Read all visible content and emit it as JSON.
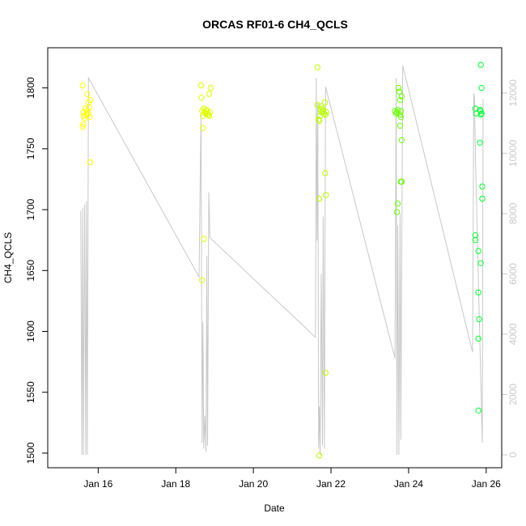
{
  "chart_data": {
    "type": "scatter",
    "title": "ORCAS RF01-6 CH4_QCLS",
    "xlabel": "Date",
    "ylabel": "CH4_QCLS",
    "x_ticks": [
      "Jan 16",
      "Jan 18",
      "Jan 20",
      "Jan 22",
      "Jan 24",
      "Jan 26"
    ],
    "x_tick_days": [
      16,
      18,
      20,
      22,
      24,
      26
    ],
    "xlim_days": [
      14.7,
      26.4
    ],
    "ylim": [
      1488,
      1833
    ],
    "y_ticks": [
      1500,
      1550,
      1600,
      1650,
      1700,
      1750,
      1800
    ],
    "y2_ticks": [
      0,
      2000,
      4000,
      6000,
      8000,
      10000,
      12000
    ],
    "y2lim": [
      -430,
      13500
    ],
    "y2_color": "#c8c8c8",
    "grid": false,
    "legend": "none",
    "series": [
      {
        "color": "#ffff00",
        "points": [
          [
            15.6,
            1802
          ],
          [
            15.62,
            1780
          ],
          [
            15.63,
            1777
          ],
          [
            15.65,
            1775
          ],
          [
            15.67,
            1783
          ],
          [
            15.7,
            1778
          ],
          [
            15.72,
            1781
          ],
          [
            15.74,
            1779
          ],
          [
            15.75,
            1788
          ],
          [
            15.77,
            1784
          ],
          [
            15.78,
            1776
          ],
          [
            15.6,
            1768
          ],
          [
            15.62,
            1770
          ],
          [
            15.72,
            1795
          ],
          [
            15.8,
            1790
          ],
          [
            15.79,
            1739
          ]
        ]
      },
      {
        "color": "#e0ff00",
        "points": [
          [
            18.65,
            1802
          ],
          [
            18.66,
            1792
          ],
          [
            18.68,
            1781
          ],
          [
            18.7,
            1767
          ],
          [
            18.7,
            1777
          ],
          [
            18.72,
            1783
          ],
          [
            18.74,
            1780
          ],
          [
            18.76,
            1779
          ],
          [
            18.78,
            1781
          ],
          [
            18.8,
            1782
          ],
          [
            18.82,
            1779
          ],
          [
            18.84,
            1778
          ],
          [
            18.86,
            1777
          ],
          [
            18.86,
            1795
          ],
          [
            18.88,
            1780
          ],
          [
            18.9,
            1800
          ],
          [
            18.72,
            1676
          ],
          [
            18.68,
            1642
          ]
        ]
      },
      {
        "color": "#b8ff00",
        "points": [
          [
            21.65,
            1817
          ],
          [
            21.65,
            1786
          ],
          [
            21.68,
            1774
          ],
          [
            21.7,
            1773
          ],
          [
            21.7,
            1709
          ],
          [
            21.72,
            1777
          ],
          [
            21.74,
            1782
          ],
          [
            21.75,
            1785
          ],
          [
            21.76,
            1780
          ],
          [
            21.78,
            1783
          ],
          [
            21.8,
            1781
          ],
          [
            21.82,
            1779
          ],
          [
            21.84,
            1788
          ],
          [
            21.86,
            1778
          ],
          [
            21.88,
            1780
          ],
          [
            21.85,
            1730
          ],
          [
            21.87,
            1712
          ],
          [
            21.86,
            1566
          ],
          [
            21.7,
            1498
          ]
        ]
      },
      {
        "color": "#66ff00",
        "points": [
          [
            23.65,
            1781
          ],
          [
            23.68,
            1779
          ],
          [
            23.7,
            1780
          ],
          [
            23.72,
            1782
          ],
          [
            23.74,
            1800
          ],
          [
            23.76,
            1797
          ],
          [
            23.78,
            1790
          ],
          [
            23.8,
            1781
          ],
          [
            23.82,
            1793
          ],
          [
            23.78,
            1778
          ],
          [
            23.8,
            1776
          ],
          [
            23.78,
            1769
          ],
          [
            23.82,
            1757
          ],
          [
            23.8,
            1723
          ],
          [
            23.82,
            1723
          ],
          [
            23.72,
            1705
          ],
          [
            23.7,
            1698
          ]
        ]
      },
      {
        "color": "#00ff30",
        "points": [
          [
            25.72,
            1783
          ],
          [
            25.74,
            1779
          ],
          [
            25.86,
            1819
          ],
          [
            25.88,
            1800
          ],
          [
            25.84,
            1782
          ],
          [
            25.86,
            1781
          ],
          [
            25.88,
            1779
          ],
          [
            25.86,
            1778
          ],
          [
            25.84,
            1755
          ],
          [
            25.9,
            1719
          ],
          [
            25.9,
            1709
          ],
          [
            25.72,
            1679
          ],
          [
            25.72,
            1675
          ],
          [
            25.8,
            1666
          ],
          [
            25.86,
            1656
          ],
          [
            25.8,
            1632
          ],
          [
            25.82,
            1610
          ],
          [
            25.8,
            1594
          ],
          [
            25.8,
            1535
          ]
        ]
      }
    ],
    "secondary_line": {
      "color": "#c8c8c8",
      "points": [
        [
          15.55,
          8100
        ],
        [
          15.58,
          0
        ],
        [
          15.6,
          8200
        ],
        [
          15.62,
          0
        ],
        [
          15.65,
          8300
        ],
        [
          15.68,
          0
        ],
        [
          15.7,
          8400
        ],
        [
          15.72,
          0
        ],
        [
          15.75,
          12500
        ],
        [
          18.6,
          5900
        ],
        [
          18.65,
          11300
        ],
        [
          18.68,
          400
        ],
        [
          18.7,
          4400
        ],
        [
          18.72,
          200
        ],
        [
          18.75,
          1300
        ],
        [
          18.78,
          100
        ],
        [
          18.8,
          6600
        ],
        [
          18.82,
          300
        ],
        [
          18.85,
          8700
        ],
        [
          18.88,
          7200
        ],
        [
          21.6,
          3900
        ],
        [
          21.62,
          12500
        ],
        [
          21.64,
          7100
        ],
        [
          21.66,
          11700
        ],
        [
          21.68,
          200
        ],
        [
          21.7,
          1600
        ],
        [
          21.72,
          0
        ],
        [
          21.75,
          6000
        ],
        [
          21.78,
          300
        ],
        [
          21.8,
          7900
        ],
        [
          21.83,
          200
        ],
        [
          21.86,
          12200
        ],
        [
          23.65,
          3200
        ],
        [
          23.68,
          12500
        ],
        [
          23.7,
          0
        ],
        [
          23.72,
          7600
        ],
        [
          23.75,
          0
        ],
        [
          23.78,
          8000
        ],
        [
          23.8,
          500
        ],
        [
          23.85,
          12900
        ],
        [
          25.65,
          3400
        ],
        [
          25.68,
          12000
        ],
        [
          25.7,
          11800
        ],
        [
          25.72,
          10000
        ],
        [
          25.9,
          400
        ],
        [
          25.92,
          11800
        ]
      ]
    }
  }
}
